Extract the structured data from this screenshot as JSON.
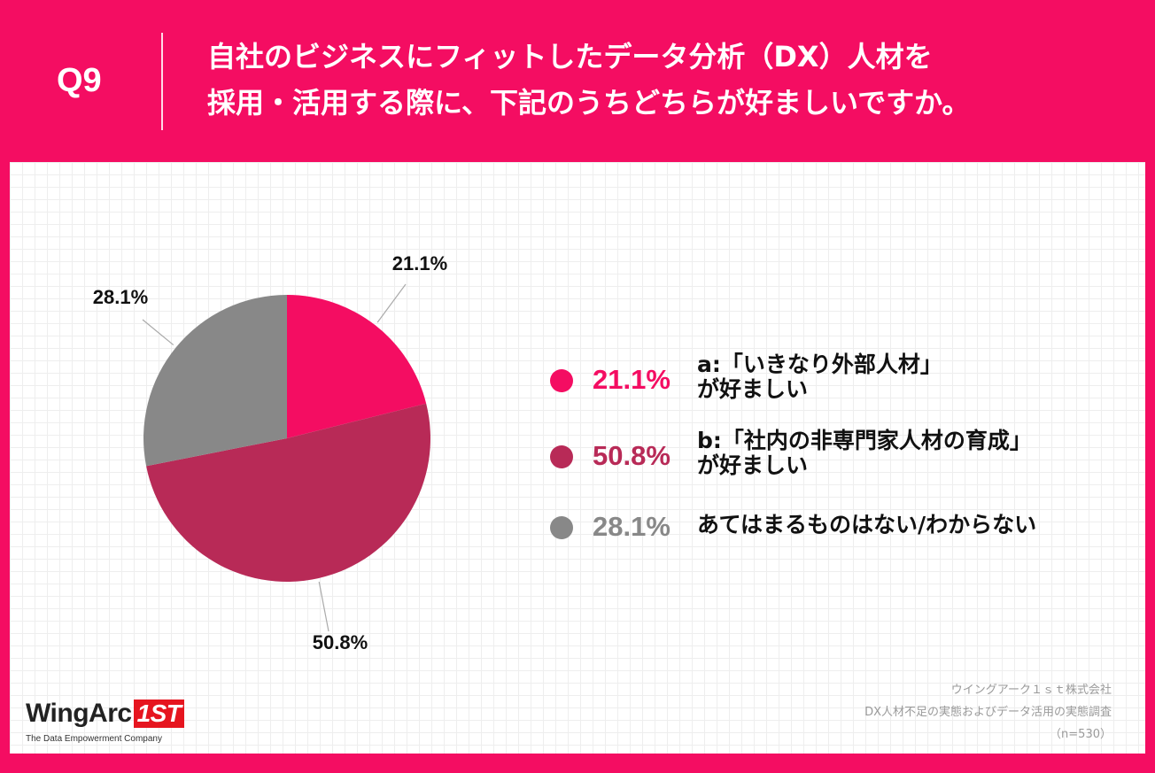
{
  "header": {
    "question_number": "Q9",
    "title_line1": "自社のビジネスにフィットしたデータ分析（DX）人材を",
    "title_line2": "採用・活用する際に、下記のうちどちらが好ましいですか。"
  },
  "chart_data": {
    "type": "pie",
    "slices": [
      {
        "key": "a",
        "value": 21.1,
        "label": "21.1%",
        "color": "#f40d62",
        "legend_line1": "a:「いきなり外部人材」",
        "legend_line2": "が好ましい"
      },
      {
        "key": "b",
        "value": 50.8,
        "label": "50.8%",
        "color": "#b82a57",
        "legend_line1": "b:「社内の非専門家人材の育成」",
        "legend_line2": "が好ましい"
      },
      {
        "key": "c",
        "value": 28.1,
        "label": "28.1%",
        "color": "#888888",
        "legend_line1": "あてはまるものはない/わからない",
        "legend_line2": ""
      }
    ],
    "start_angle": "12 o'clock",
    "direction": "clockwise",
    "legend_placement": "right"
  },
  "colors": {
    "brand_pink": "#f40d62",
    "slice_a": "#f40d62",
    "slice_b": "#b82a57",
    "slice_c": "#888888",
    "logo_red": "#e6151f"
  },
  "footer": {
    "logo_text": "WingArc",
    "logo_badge": "1ST",
    "logo_tagline": "The Data Empowerment Company",
    "source_company": "ウイングアーク１ｓｔ株式会社",
    "source_survey": "DX人材不足の実態およびデータ活用の実態調査",
    "source_n": "（n=530）"
  }
}
